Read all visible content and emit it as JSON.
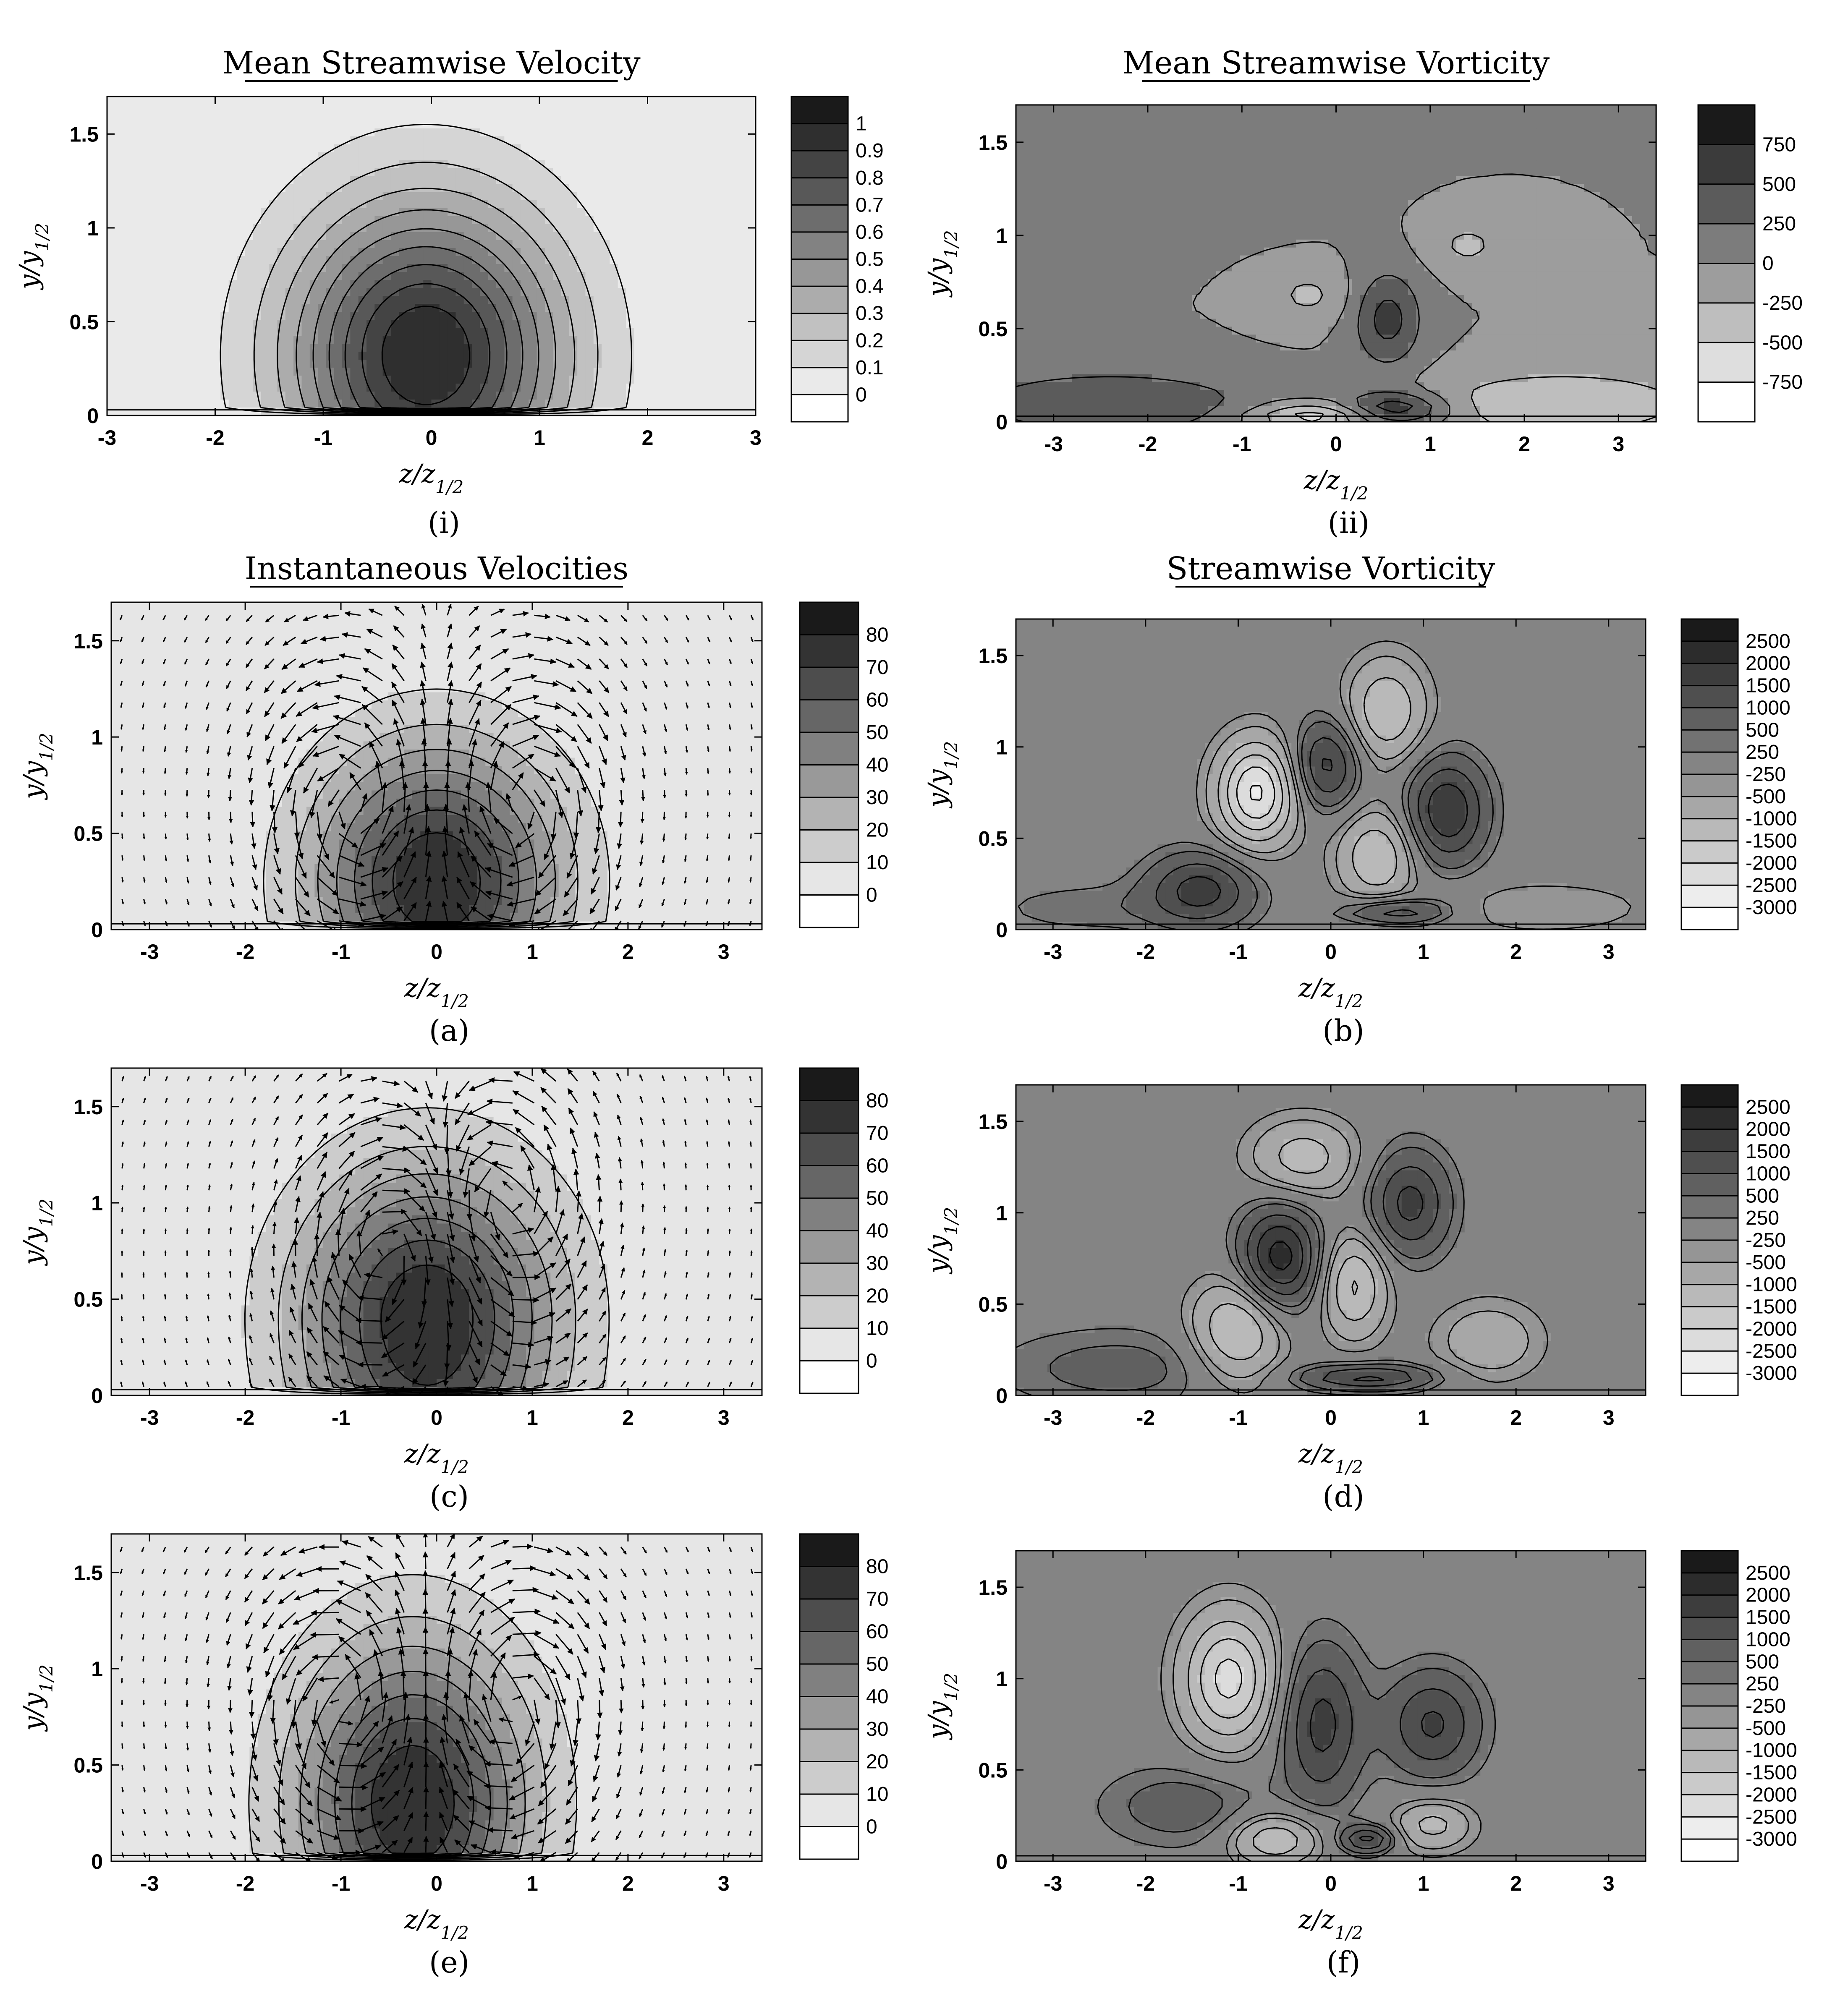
{
  "panels": [
    {
      "title": "Mean Streamwise Velocity",
      "panel_label": "(i)",
      "xlabel": "z/z",
      "xlabel_sub": "1/2",
      "ylabel": "y/y",
      "ylabel_sub": "1/2",
      "colorbar_labels": [
        "1",
        "0.9",
        "0.8",
        "0.7",
        "0.6",
        "0.5",
        "0.4",
        "0.3",
        "0.2",
        "0.1",
        "0"
      ]
    },
    {
      "title": "Mean Streamwise Vorticity",
      "panel_label": "(ii)",
      "xlabel": "z/z",
      "xlabel_sub": "1/2",
      "ylabel": "y/y",
      "ylabel_sub": "1/2",
      "colorbar_labels": [
        "750",
        "500",
        "250",
        "0",
        "-250",
        "-500",
        "-750"
      ]
    },
    {
      "title": "Instantaneous Velocities",
      "panel_label": "(a)",
      "xlabel": "z/z",
      "xlabel_sub": "1/2",
      "ylabel": "y/y",
      "ylabel_sub": "1/2",
      "colorbar_labels": [
        "80",
        "70",
        "60",
        "50",
        "40",
        "30",
        "20",
        "10",
        "0"
      ]
    },
    {
      "title": "Streamwise Vorticity",
      "panel_label": "(b)",
      "xlabel": "z/z",
      "xlabel_sub": "1/2",
      "ylabel": "y/y",
      "ylabel_sub": "1/2",
      "colorbar_labels": [
        "2500",
        "2000",
        "1500",
        "1000",
        "500",
        "250",
        "-250",
        "-500",
        "-1000",
        "-1500",
        "-2000",
        "-2500",
        "-3000"
      ]
    },
    {
      "title": "",
      "panel_label": "(c)",
      "xlabel": "z/z",
      "xlabel_sub": "1/2",
      "ylabel": "y/y",
      "ylabel_sub": "1/2",
      "colorbar_labels": [
        "80",
        "70",
        "60",
        "50",
        "40",
        "30",
        "20",
        "10",
        "0"
      ]
    },
    {
      "title": "",
      "panel_label": "(d)",
      "xlabel": "z/z",
      "xlabel_sub": "1/2",
      "ylabel": "y/y",
      "ylabel_sub": "1/2",
      "colorbar_labels": [
        "2500",
        "2000",
        "1500",
        "1000",
        "500",
        "250",
        "-250",
        "-500",
        "-1000",
        "-1500",
        "-2000",
        "-2500",
        "-3000"
      ]
    },
    {
      "title": "",
      "panel_label": "(e)",
      "xlabel": "z/z",
      "xlabel_sub": "1/2",
      "ylabel": "y/y",
      "ylabel_sub": "1/2",
      "colorbar_labels": [
        "80",
        "70",
        "60",
        "50",
        "40",
        "30",
        "20",
        "10",
        "0"
      ]
    },
    {
      "title": "",
      "panel_label": "(f)",
      "xlabel": "z/z",
      "xlabel_sub": "1/2",
      "ylabel": "y/y",
      "ylabel_sub": "1/2",
      "colorbar_labels": [
        "2500",
        "2000",
        "1500",
        "1000",
        "500",
        "250",
        "-250",
        "-500",
        "-1000",
        "-1500",
        "-2000",
        "-2500",
        "-3000"
      ]
    }
  ],
  "chart_data": [
    {
      "type": "heatmap",
      "title": "Mean Streamwise Velocity",
      "xlabel": "z/z1/2",
      "ylabel": "y/y1/2",
      "xlim": [
        -3,
        3
      ],
      "ylim": [
        0,
        1.7
      ],
      "xticks": [
        "-3",
        "-2",
        "-1",
        "0",
        "1",
        "2",
        "3"
      ],
      "yticks": [
        "0",
        "0.5",
        "1",
        "1.5"
      ],
      "contour_levels": [
        0,
        0.1,
        0.2,
        0.3,
        0.4,
        0.5,
        0.6,
        0.7,
        0.8,
        0.9,
        1
      ],
      "field": {
        "kind": "jet",
        "core": [
          -0.05,
          0.32
        ],
        "peak": 1.0,
        "half_width_z": 1.9,
        "height_y": 1.55
      },
      "colormap": [
        "#ffffff",
        "#1a1a1a"
      ]
    },
    {
      "type": "heatmap",
      "title": "Mean Streamwise Vorticity",
      "xlabel": "z/z1/2",
      "ylabel": "y/y1/2",
      "xlim": [
        -3.4,
        3.4
      ],
      "ylim": [
        0,
        1.7
      ],
      "xticks": [
        "-3",
        "-2",
        "-1",
        "0",
        "1",
        "2",
        "3"
      ],
      "yticks": [
        "0",
        "0.5",
        "1",
        "1.5"
      ],
      "contour_levels": [
        -750,
        -500,
        -250,
        0,
        250,
        500,
        750
      ],
      "field": {
        "kind": "blobs",
        "background": 0,
        "blobs": [
          {
            "z": 0.55,
            "y": 0.55,
            "amp": 600,
            "sz": 0.25,
            "sy": 0.18
          },
          {
            "z": 0.6,
            "y": 0.07,
            "amp": 800,
            "sz": 0.4,
            "sy": 0.06
          },
          {
            "z": -2.4,
            "y": 0.1,
            "amp": 500,
            "sz": 1.1,
            "sy": 0.12
          },
          {
            "z": 2.4,
            "y": 0.1,
            "amp": -500,
            "sz": 1.0,
            "sy": 0.12
          },
          {
            "z": -0.2,
            "y": 0.03,
            "amp": -700,
            "sz": 0.5,
            "sy": 0.05
          },
          {
            "z": -0.3,
            "y": 0.68,
            "amp": -300,
            "sz": 0.3,
            "sy": 0.1
          },
          {
            "z": 1.4,
            "y": 0.95,
            "amp": -300,
            "sz": 0.3,
            "sy": 0.1
          },
          {
            "z": -1.3,
            "y": 1.45,
            "amp": 250,
            "sz": 0.8,
            "sy": 0.2
          }
        ]
      },
      "colormap": [
        "#ffffff",
        "#1a1a1a"
      ]
    },
    {
      "type": "heatmap",
      "title": "Instantaneous Velocities",
      "xlabel": "z/z1/2",
      "ylabel": "y/y1/2",
      "xlim": [
        -3.4,
        3.4
      ],
      "ylim": [
        0,
        1.7
      ],
      "xticks": [
        "-3",
        "-2",
        "-1",
        "0",
        "1",
        "2",
        "3"
      ],
      "yticks": [
        "0",
        "0.5",
        "1",
        "1.5"
      ],
      "contour_levels": [
        0,
        10,
        20,
        30,
        40,
        50,
        60,
        70,
        80
      ],
      "field": {
        "kind": "jet",
        "core": [
          0.0,
          0.25
        ],
        "peak": 80,
        "half_width_z": 1.9,
        "height_y": 1.3
      },
      "vectors": {
        "kind": "vortex-pair",
        "centers": [
          [
            -0.9,
            0.65,
            1
          ],
          [
            0.9,
            0.65,
            -1
          ]
        ]
      },
      "colormap": [
        "#ffffff",
        "#1a1a1a"
      ]
    },
    {
      "type": "heatmap",
      "title": "Streamwise Vorticity",
      "xlabel": "z/z1/2",
      "ylabel": "y/y1/2",
      "xlim": [
        -3.4,
        3.4
      ],
      "ylim": [
        0,
        1.7
      ],
      "xticks": [
        "-3",
        "-2",
        "-1",
        "0",
        "1",
        "2",
        "3"
      ],
      "yticks": [
        "0",
        "0.5",
        "1",
        "1.5"
      ],
      "contour_levels": [
        -3000,
        -2500,
        -2000,
        -1500,
        -1000,
        -500,
        -250,
        250,
        500,
        1000,
        1500,
        2000,
        2500
      ],
      "field": {
        "kind": "blobs",
        "background": 0,
        "blobs": [
          {
            "z": -0.8,
            "y": 0.75,
            "amp": -2600,
            "sz": 0.3,
            "sy": 0.2
          },
          {
            "z": -0.05,
            "y": 0.9,
            "amp": 1700,
            "sz": 0.25,
            "sy": 0.17
          },
          {
            "z": 0.6,
            "y": 1.2,
            "amp": -1500,
            "sz": 0.3,
            "sy": 0.2
          },
          {
            "z": 1.25,
            "y": 0.65,
            "amp": 2000,
            "sz": 0.3,
            "sy": 0.2
          },
          {
            "z": 0.5,
            "y": 0.4,
            "amp": -1500,
            "sz": 0.3,
            "sy": 0.18
          },
          {
            "z": -1.4,
            "y": 0.22,
            "amp": 1700,
            "sz": 0.4,
            "sy": 0.14
          },
          {
            "z": 0.7,
            "y": 0.1,
            "amp": 1500,
            "sz": 0.4,
            "sy": 0.05
          },
          {
            "z": -2.6,
            "y": 0.12,
            "amp": 400,
            "sz": 0.8,
            "sy": 0.1
          },
          {
            "z": 2.3,
            "y": 0.12,
            "amp": -500,
            "sz": 0.8,
            "sy": 0.1
          }
        ]
      },
      "colormap": [
        "#ffffff",
        "#1a1a1a"
      ]
    },
    {
      "type": "heatmap",
      "title": "",
      "xlabel": "z/z1/2",
      "ylabel": "y/y1/2",
      "xlim": [
        -3.4,
        3.4
      ],
      "ylim": [
        0,
        1.7
      ],
      "xticks": [
        "-3",
        "-2",
        "-1",
        "0",
        "1",
        "2",
        "3"
      ],
      "yticks": [
        "0",
        "0.5",
        "1",
        "1.5"
      ],
      "contour_levels": [
        0,
        10,
        20,
        30,
        40,
        50,
        60,
        70,
        80
      ],
      "field": {
        "kind": "jet",
        "core": [
          -0.1,
          0.4
        ],
        "peak": 80,
        "half_width_z": 2.0,
        "height_y": 1.55
      },
      "vectors": {
        "kind": "vortex-pair",
        "centers": [
          [
            -0.5,
            0.75,
            -1
          ],
          [
            0.7,
            1.0,
            1
          ]
        ]
      },
      "colormap": [
        "#ffffff",
        "#1a1a1a"
      ]
    },
    {
      "type": "heatmap",
      "title": "",
      "xlabel": "z/z1/2",
      "ylabel": "y/y1/2",
      "xlim": [
        -3.4,
        3.4
      ],
      "ylim": [
        0,
        1.7
      ],
      "xticks": [
        "-3",
        "-2",
        "-1",
        "0",
        "1",
        "2",
        "3"
      ],
      "yticks": [
        "0",
        "0.5",
        "1",
        "1.5"
      ],
      "contour_levels": [
        -3000,
        -2500,
        -2000,
        -1500,
        -1000,
        -500,
        -250,
        250,
        500,
        1000,
        1500,
        2000,
        2500
      ],
      "field": {
        "kind": "blobs",
        "background": 0,
        "blobs": [
          {
            "z": -0.55,
            "y": 0.75,
            "amp": 2300,
            "sz": 0.3,
            "sy": 0.2
          },
          {
            "z": 0.25,
            "y": 0.6,
            "amp": -1600,
            "sz": 0.25,
            "sy": 0.2
          },
          {
            "z": 0.85,
            "y": 1.05,
            "amp": 1700,
            "sz": 0.3,
            "sy": 0.2
          },
          {
            "z": -0.3,
            "y": 1.3,
            "amp": -1300,
            "sz": 0.4,
            "sy": 0.15
          },
          {
            "z": -1.0,
            "y": 0.35,
            "amp": -1700,
            "sz": 0.35,
            "sy": 0.2
          },
          {
            "z": 0.4,
            "y": 0.1,
            "amp": 1700,
            "sz": 0.5,
            "sy": 0.05
          },
          {
            "z": 1.7,
            "y": 0.3,
            "amp": -900,
            "sz": 0.4,
            "sy": 0.15
          },
          {
            "z": -2.3,
            "y": 0.15,
            "amp": 700,
            "sz": 0.9,
            "sy": 0.15
          }
        ]
      },
      "colormap": [
        "#ffffff",
        "#1a1a1a"
      ]
    },
    {
      "type": "heatmap",
      "title": "",
      "xlabel": "z/z1/2",
      "ylabel": "y/y1/2",
      "xlim": [
        -3.4,
        3.4
      ],
      "ylim": [
        0,
        1.7
      ],
      "xticks": [
        "-3",
        "-2",
        "-1",
        "0",
        "1",
        "2",
        "3"
      ],
      "yticks": [
        "0",
        "0.5",
        "1",
        "1.5"
      ],
      "contour_levels": [
        0,
        10,
        20,
        30,
        40,
        50,
        60,
        70,
        80
      ],
      "field": {
        "kind": "jet",
        "core": [
          -0.25,
          0.3
        ],
        "peak": 80,
        "half_width_z": 1.8,
        "height_y": 1.55
      },
      "vectors": {
        "kind": "vortex-pair",
        "centers": [
          [
            -1.0,
            0.8,
            1
          ],
          [
            0.8,
            0.8,
            -1
          ]
        ]
      },
      "colormap": [
        "#ffffff",
        "#1a1a1a"
      ]
    },
    {
      "type": "heatmap",
      "title": "",
      "xlabel": "z/z1/2",
      "ylabel": "y/y1/2",
      "xlim": [
        -3.4,
        3.4
      ],
      "ylim": [
        0,
        1.7
      ],
      "xticks": [
        "-3",
        "-2",
        "-1",
        "0",
        "1",
        "2",
        "3"
      ],
      "yticks": [
        "0",
        "0.5",
        "1",
        "1.5"
      ],
      "contour_levels": [
        -3000,
        -2500,
        -2000,
        -1500,
        -1000,
        -500,
        -250,
        250,
        500,
        1000,
        1500,
        2000,
        2500
      ],
      "field": {
        "kind": "blobs",
        "background": 0,
        "blobs": [
          {
            "z": -1.1,
            "y": 1.0,
            "amp": -2200,
            "sz": 0.35,
            "sy": 0.25
          },
          {
            "z": -0.1,
            "y": 0.75,
            "amp": 1700,
            "sz": 0.3,
            "sy": 0.3
          },
          {
            "z": 1.1,
            "y": 0.75,
            "amp": 1600,
            "sz": 0.35,
            "sy": 0.2
          },
          {
            "z": -0.6,
            "y": 0.12,
            "amp": -1500,
            "sz": 0.35,
            "sy": 0.1
          },
          {
            "z": 0.4,
            "y": 0.12,
            "amp": 1700,
            "sz": 0.2,
            "sy": 0.05
          },
          {
            "z": 1.1,
            "y": 0.2,
            "amp": -1200,
            "sz": 0.3,
            "sy": 0.1
          },
          {
            "z": -1.6,
            "y": 0.3,
            "amp": 800,
            "sz": 0.6,
            "sy": 0.15
          }
        ]
      },
      "colormap": [
        "#ffffff",
        "#1a1a1a"
      ]
    }
  ]
}
